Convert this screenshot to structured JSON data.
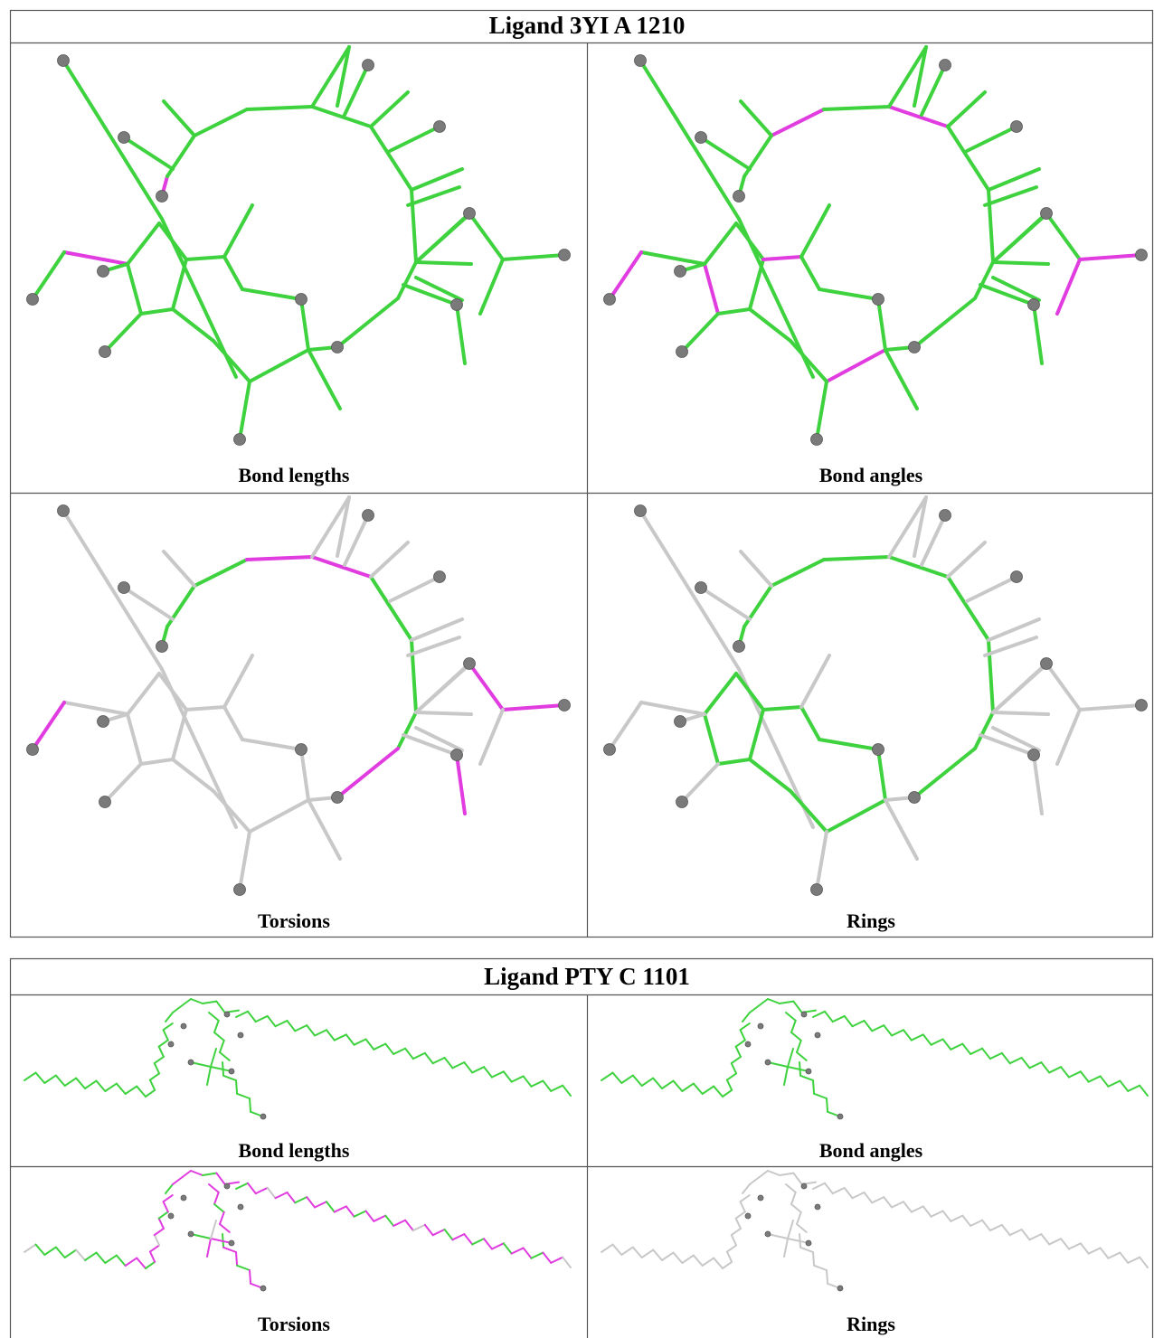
{
  "tables": [
    {
      "title": "Ligand 3YI A 1210",
      "panels": [
        "Bond lengths",
        "Bond angles",
        "Torsions",
        "Rings"
      ]
    },
    {
      "title": "Ligand PTY C 1101",
      "panels": [
        "Bond lengths",
        "Bond angles",
        "Torsions",
        "Rings"
      ]
    }
  ]
}
